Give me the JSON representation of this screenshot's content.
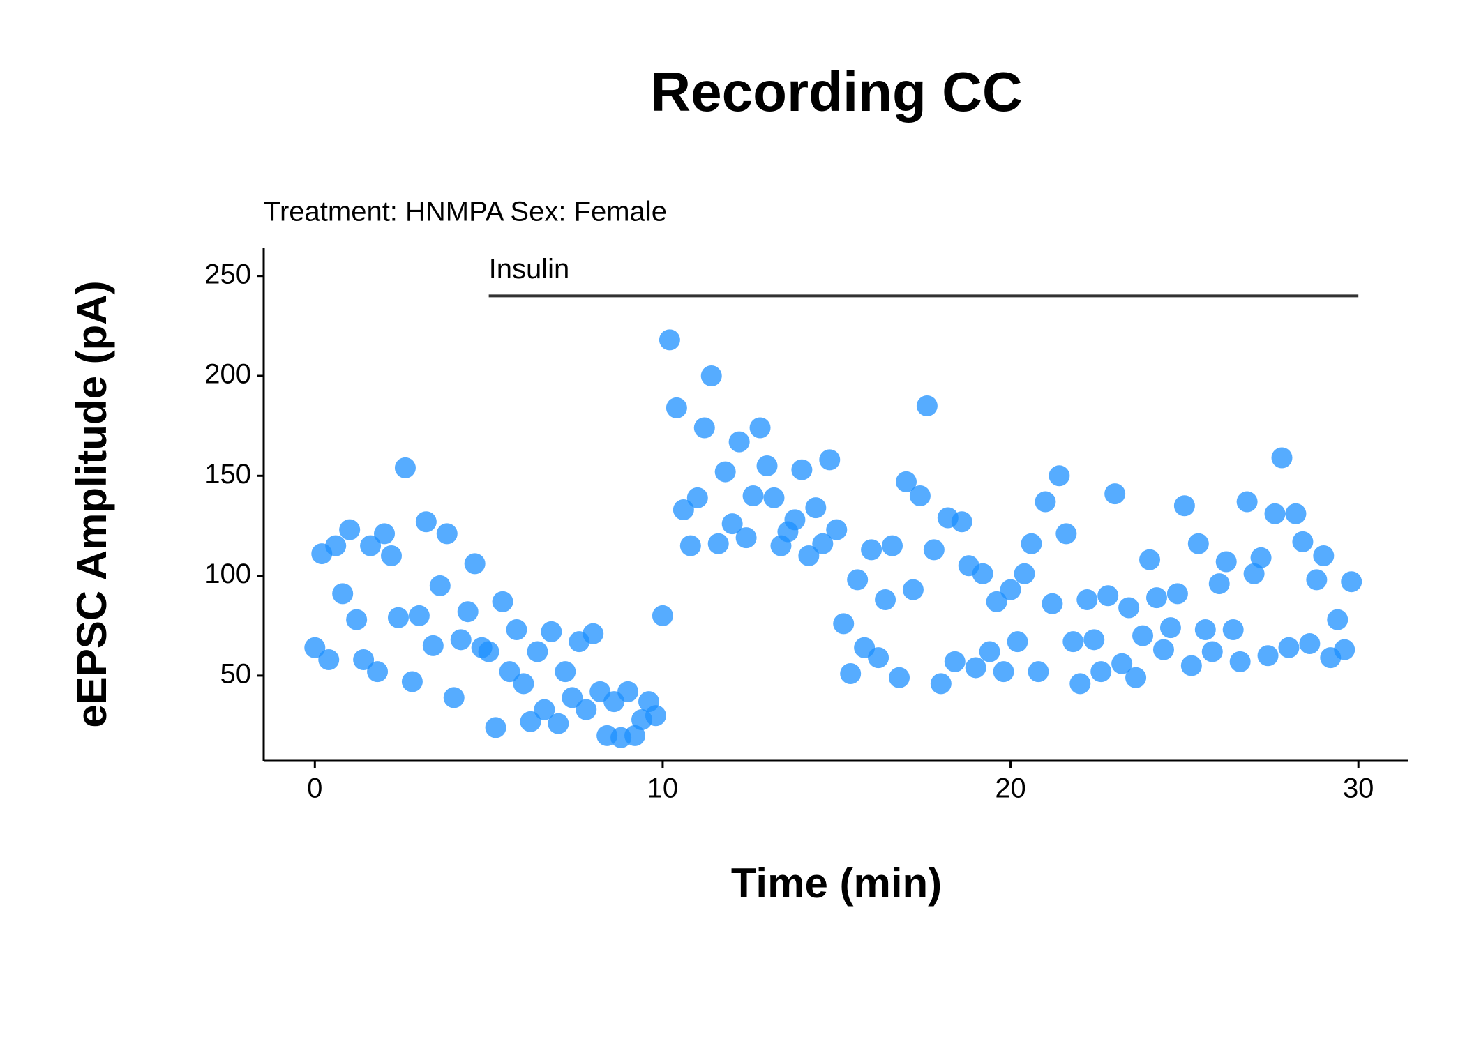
{
  "chart_data": {
    "type": "scatter",
    "title": "Recording CC",
    "subtitle": "Treatment: HNMPA  Sex: Female",
    "xlabel": "Time (min)",
    "ylabel": "eEPSC Amplitude (pA)",
    "annotation": {
      "label": "Insulin",
      "x": [
        5,
        30
      ],
      "y": 240
    },
    "color": "#1e90ff",
    "xlim": [
      -1.47,
      31.44
    ],
    "ylim": [
      7.4,
      264.2
    ],
    "xticks": [
      0,
      10,
      20,
      30
    ],
    "yticks": [
      50,
      100,
      150,
      200,
      250
    ],
    "grid": false,
    "x": [
      0,
      0.2,
      0.4,
      0.6,
      0.8,
      1,
      1.2,
      1.4,
      1.6,
      1.8,
      2,
      2.2,
      2.4,
      2.6,
      2.8,
      3,
      3.2,
      3.4,
      3.6,
      3.8,
      4,
      4.2,
      4.4,
      4.6,
      4.8,
      5,
      5.2,
      5.4,
      5.6,
      5.8,
      6,
      6.2,
      6.4,
      6.6,
      6.8,
      7,
      7.2,
      7.4,
      7.6,
      7.8,
      8,
      8.2,
      8.4,
      8.6,
      8.8,
      9,
      9.2,
      9.4,
      9.6,
      9.8,
      10,
      10.2,
      10.4,
      10.6,
      10.8,
      11,
      11.2,
      11.4,
      11.6,
      11.8,
      12,
      12.2,
      12.4,
      12.6,
      12.8,
      13,
      13.2,
      13.4,
      13.6,
      13.8,
      14,
      14.2,
      14.4,
      14.6,
      14.8,
      15,
      15.2,
      15.4,
      15.6,
      15.8,
      16,
      16.2,
      16.4,
      16.6,
      16.8,
      17,
      17.2,
      17.4,
      17.6,
      17.8,
      18,
      18.2,
      18.4,
      18.6,
      18.8,
      19,
      19.2,
      19.4,
      19.6,
      19.8,
      20,
      20.2,
      20.4,
      20.6,
      20.8,
      21,
      21.2,
      21.4,
      21.6,
      21.8,
      22,
      22.2,
      22.4,
      22.6,
      22.8,
      23,
      23.2,
      23.4,
      23.6,
      23.8,
      24,
      24.2,
      24.4,
      24.6,
      24.8,
      25,
      25.2,
      25.4,
      25.6,
      25.8,
      26,
      26.2,
      26.4,
      26.6,
      26.8,
      27,
      27.2,
      27.4,
      27.6,
      27.8,
      28,
      28.2,
      28.4,
      28.6,
      28.8,
      29,
      29.2,
      29.4,
      29.6,
      29.8
    ],
    "values": [
      64,
      111,
      58,
      115,
      91,
      123,
      78,
      58,
      115,
      52,
      121,
      110,
      79,
      154,
      47,
      80,
      127,
      65,
      95,
      121,
      39,
      68,
      82,
      106,
      64,
      62,
      24,
      87,
      52,
      73,
      46,
      27,
      62,
      33,
      72,
      26,
      52,
      39,
      67,
      33,
      71,
      42,
      20,
      37,
      19,
      42,
      20,
      28,
      37,
      30,
      80,
      218,
      184,
      133,
      115,
      139,
      174,
      200,
      116,
      152,
      126,
      167,
      119,
      140,
      174,
      155,
      139,
      115,
      122,
      128,
      153,
      110,
      134,
      116,
      158,
      123,
      76,
      51,
      98,
      64,
      113,
      59,
      88,
      115,
      49,
      147,
      93,
      140,
      185,
      113,
      46,
      129,
      57,
      127,
      105,
      54,
      101,
      62,
      87,
      52,
      93,
      67,
      101,
      116,
      52,
      137,
      86,
      150,
      121,
      67,
      46,
      88,
      68,
      52,
      90,
      141,
      56,
      84,
      49,
      70,
      108,
      89,
      63,
      74,
      91,
      135,
      55,
      116,
      73,
      62,
      96,
      107,
      73,
      57,
      137,
      101,
      109,
      60,
      131,
      159,
      64,
      131,
      117,
      66,
      98,
      110,
      59,
      78,
      63,
      97
    ]
  }
}
